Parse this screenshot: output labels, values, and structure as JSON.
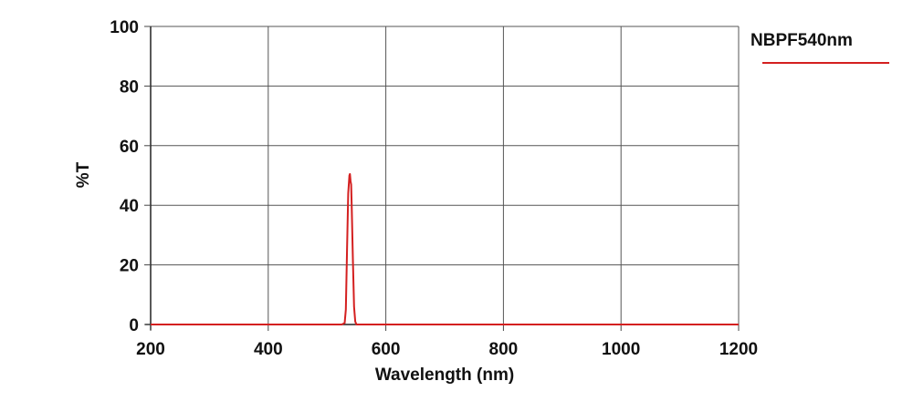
{
  "chart_data": {
    "type": "line",
    "title": "",
    "xlabel": "Wavelength (nm)",
    "ylabel": "%T",
    "xlim": [
      200,
      1200
    ],
    "ylim": [
      0,
      100
    ],
    "xticks": [
      200,
      400,
      600,
      800,
      1000,
      1200
    ],
    "yticks": [
      0,
      20,
      40,
      60,
      80,
      100
    ],
    "grid": true,
    "legend_position": "top-right-outside",
    "series": [
      {
        "name": "NBPF540nm",
        "color": "#d42020",
        "x": [
          200,
          525,
          530,
          532,
          534,
          536,
          538,
          539,
          540,
          541,
          542,
          544,
          546,
          548,
          550,
          555,
          1200
        ],
        "y": [
          0,
          0,
          0.5,
          5,
          25,
          44,
          50,
          50.5,
          48,
          47,
          40,
          22,
          6,
          1,
          0,
          0,
          0
        ]
      }
    ]
  },
  "legend": {
    "items": [
      {
        "label": "NBPF540nm",
        "color": "#d42020"
      }
    ]
  }
}
